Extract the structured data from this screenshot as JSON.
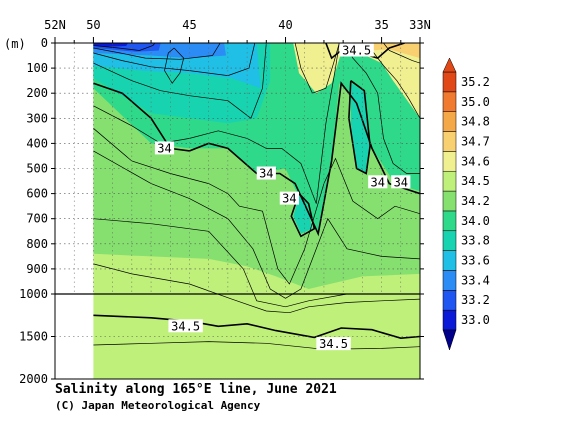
{
  "chart_data": {
    "type": "heatmap",
    "title": "Salinity along 165°E line, June 2021",
    "credit": "(C) Japan Meteorological Agency",
    "y_unit_label": "(m)",
    "x_tick_labels": [
      "52N",
      "50",
      "45",
      "40",
      "35",
      "33N"
    ],
    "x_tick_values": [
      52,
      50,
      45,
      40,
      35,
      33
    ],
    "x_range": [
      52,
      33
    ],
    "y_ticks": [
      0,
      100,
      200,
      300,
      400,
      500,
      600,
      700,
      800,
      900,
      1000,
      1500,
      2000
    ],
    "y_tick_labels": [
      "0",
      "100",
      "200",
      "300",
      "400",
      "500",
      "600",
      "700",
      "800",
      "900",
      "1000",
      "1500",
      "2000"
    ],
    "upper_range_m": [
      0,
      1000
    ],
    "lower_range_m": [
      1000,
      2000
    ],
    "data_start_lat": 50,
    "contour_labels": [
      {
        "text": "34.5",
        "lat": 36.3,
        "depth": 30
      },
      {
        "text": "34",
        "lat": 46.3,
        "depth": 420
      },
      {
        "text": "34",
        "lat": 41.0,
        "depth": 520
      },
      {
        "text": "34",
        "lat": 39.8,
        "depth": 620
      },
      {
        "text": "34",
        "lat": 35.2,
        "depth": 555
      },
      {
        "text": "34",
        "lat": 34.0,
        "depth": 555
      },
      {
        "text": "34.5",
        "lat": 45.2,
        "depth": 1380
      },
      {
        "text": "34.5",
        "lat": 37.5,
        "depth": 1590
      }
    ],
    "color_scale": [
      {
        "level": "33.0",
        "color": "#0a1ad6"
      },
      {
        "level": "33.2",
        "color": "#1f55f0"
      },
      {
        "level": "33.4",
        "color": "#2a8cf4"
      },
      {
        "level": "33.6",
        "color": "#1fbfe6"
      },
      {
        "level": "33.8",
        "color": "#18d3b0"
      },
      {
        "level": "34.0",
        "color": "#2ed98a"
      },
      {
        "level": "34.2",
        "color": "#86e070"
      },
      {
        "level": "34.5",
        "color": "#bff07a"
      },
      {
        "level": "34.6",
        "color": "#f0f090"
      },
      {
        "level": "34.7",
        "color": "#f8d070"
      },
      {
        "level": "34.8",
        "color": "#f5a848"
      },
      {
        "level": "35.0",
        "color": "#f07a30"
      },
      {
        "level": "35.2",
        "color": "#e04818"
      }
    ],
    "colorbar_labels": [
      "33.0",
      "33.2",
      "33.4",
      "33.6",
      "33.8",
      "34.0",
      "34.2",
      "34.5",
      "34.6",
      "34.7",
      "34.8",
      "35.0",
      "35.2"
    ]
  }
}
